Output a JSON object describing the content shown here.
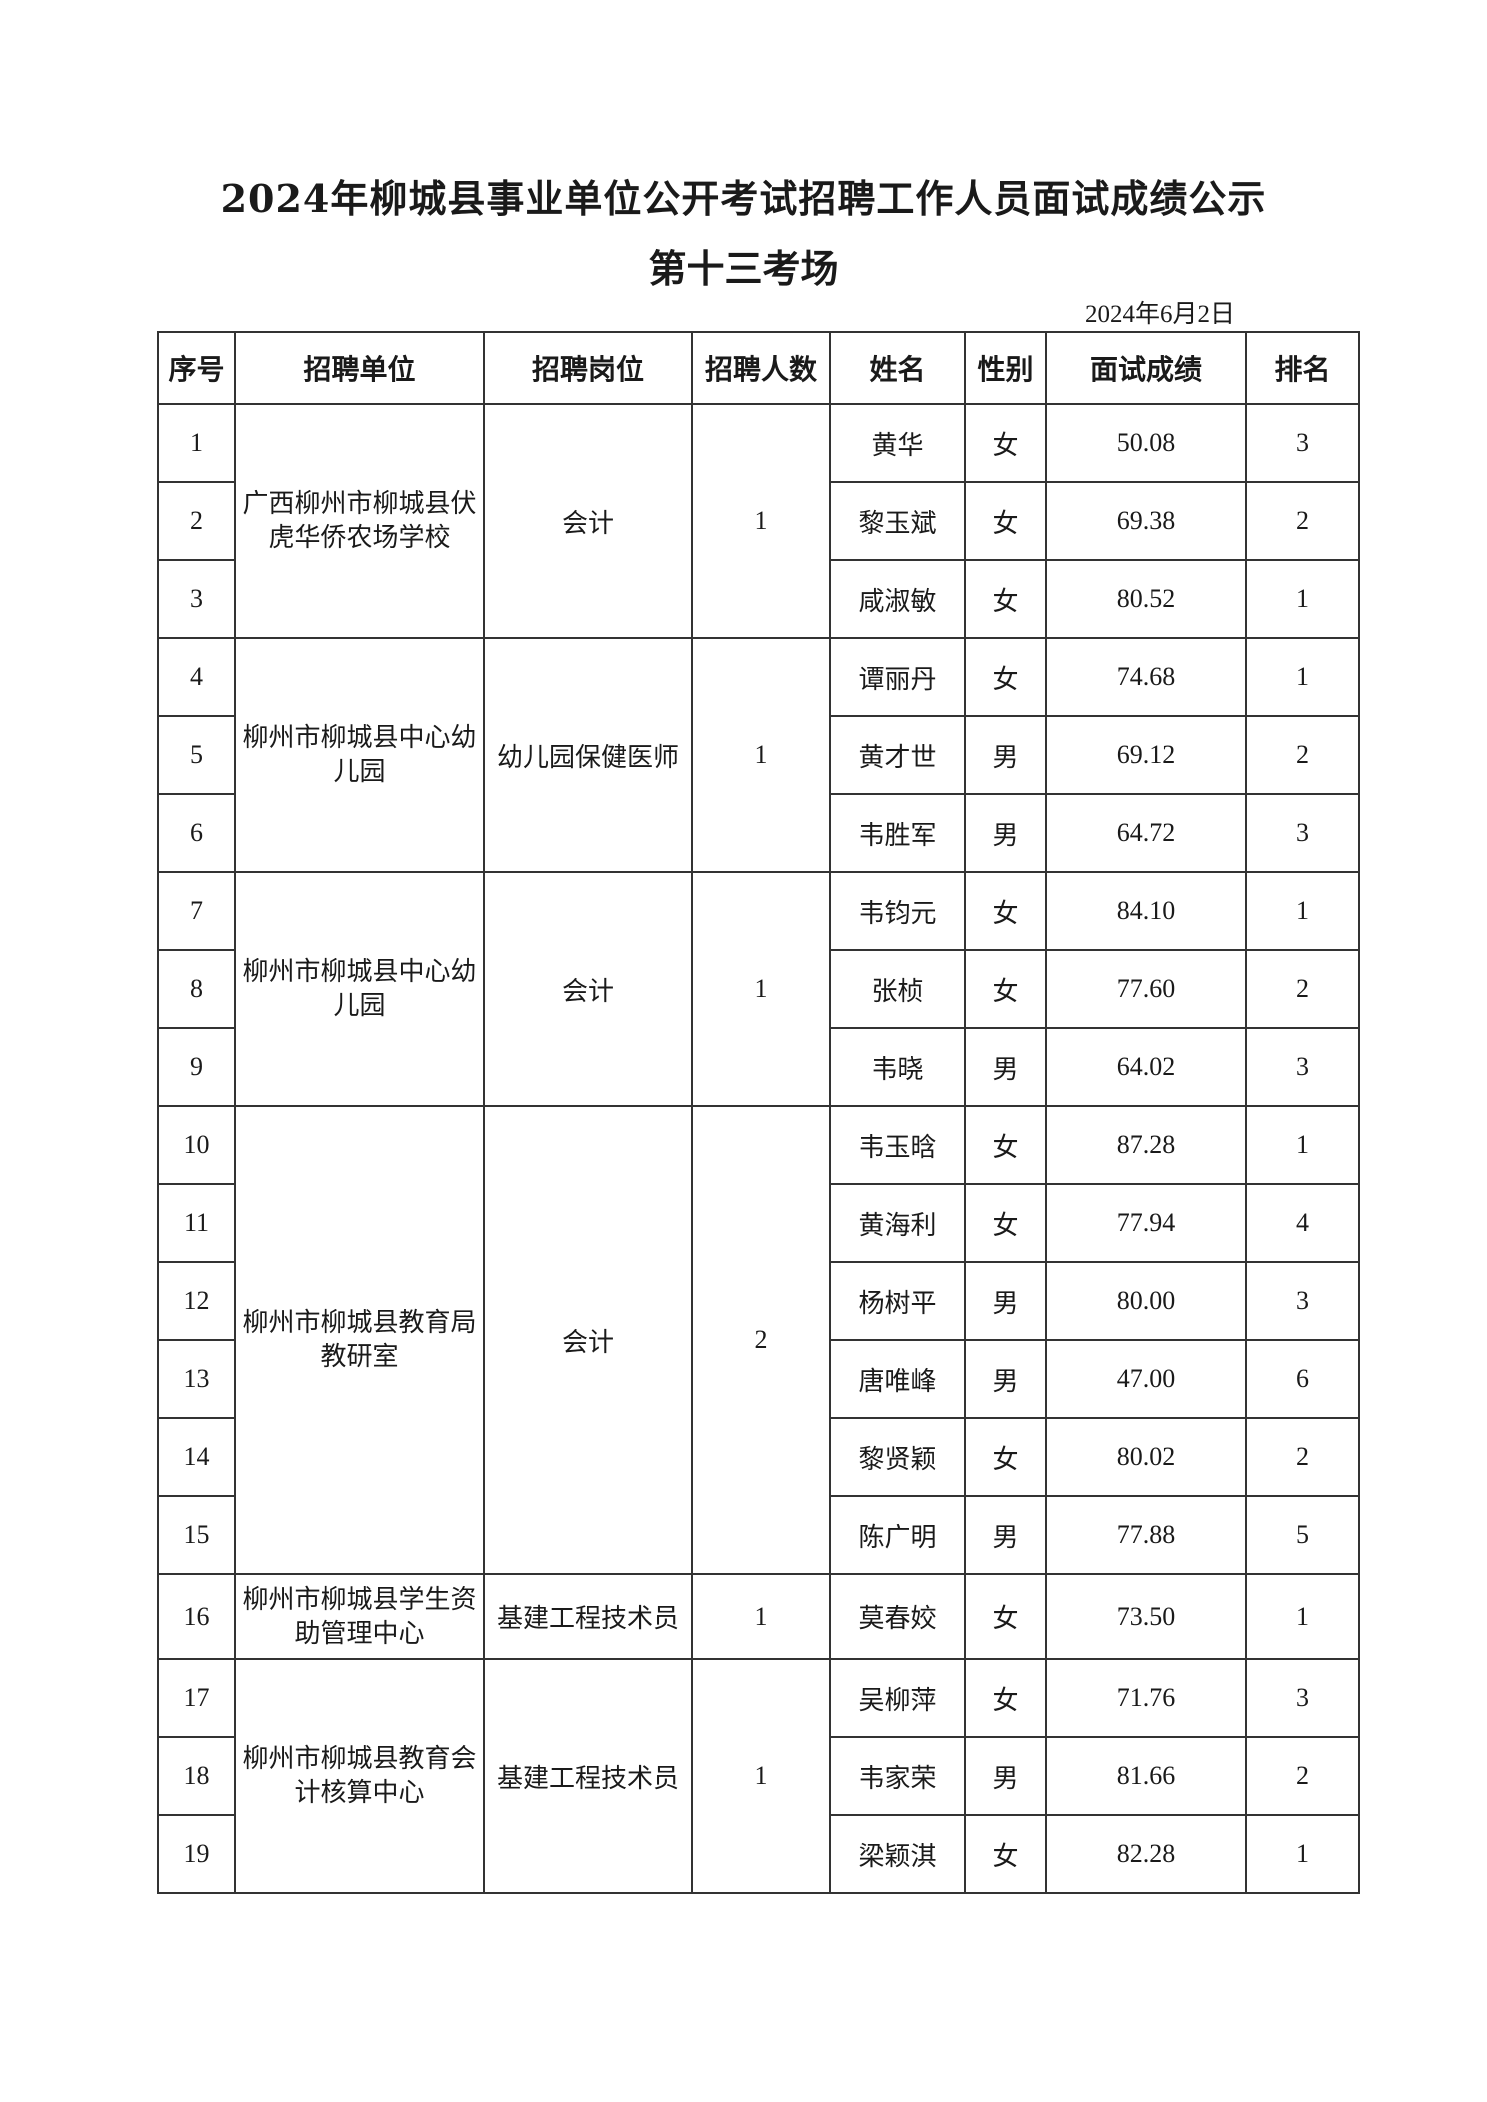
{
  "title": "2024年柳城县事业单位公开考试招聘工作人员面试成绩公示",
  "subtitle": "第十三考场",
  "date": "2024年6月2日",
  "table": {
    "headers": [
      "序号",
      "招聘单位",
      "招聘岗位",
      "招聘人数",
      "姓名",
      "性别",
      "面试成绩",
      "排名"
    ],
    "groups": [
      {
        "unit": "广西柳州市柳城县伏虎华侨农场学校",
        "post": "会计",
        "count": "1",
        "rows": [
          {
            "no": "1",
            "name": "黄华",
            "gender": "女",
            "score": "50.08",
            "rank": "3"
          },
          {
            "no": "2",
            "name": "黎玉斌",
            "gender": "女",
            "score": "69.38",
            "rank": "2"
          },
          {
            "no": "3",
            "name": "咸淑敏",
            "gender": "女",
            "score": "80.52",
            "rank": "1"
          }
        ]
      },
      {
        "unit": "柳州市柳城县中心幼儿园",
        "post": "幼儿园保健医师",
        "count": "1",
        "rows": [
          {
            "no": "4",
            "name": "谭丽丹",
            "gender": "女",
            "score": "74.68",
            "rank": "1"
          },
          {
            "no": "5",
            "name": "黄才世",
            "gender": "男",
            "score": "69.12",
            "rank": "2"
          },
          {
            "no": "6",
            "name": "韦胜军",
            "gender": "男",
            "score": "64.72",
            "rank": "3"
          }
        ]
      },
      {
        "unit": "柳州市柳城县中心幼儿园",
        "post": "会计",
        "count": "1",
        "rows": [
          {
            "no": "7",
            "name": "韦钧元",
            "gender": "女",
            "score": "84.10",
            "rank": "1"
          },
          {
            "no": "8",
            "name": "张桢",
            "gender": "女",
            "score": "77.60",
            "rank": "2"
          },
          {
            "no": "9",
            "name": "韦晓",
            "gender": "男",
            "score": "64.02",
            "rank": "3"
          }
        ]
      },
      {
        "unit": "柳州市柳城县教育局教研室",
        "post": "会计",
        "count": "2",
        "rows": [
          {
            "no": "10",
            "name": "韦玉晗",
            "gender": "女",
            "score": "87.28",
            "rank": "1"
          },
          {
            "no": "11",
            "name": "黄海利",
            "gender": "女",
            "score": "77.94",
            "rank": "4"
          },
          {
            "no": "12",
            "name": "杨树平",
            "gender": "男",
            "score": "80.00",
            "rank": "3"
          },
          {
            "no": "13",
            "name": "唐唯峰",
            "gender": "男",
            "score": "47.00",
            "rank": "6"
          },
          {
            "no": "14",
            "name": "黎贤颖",
            "gender": "女",
            "score": "80.02",
            "rank": "2"
          },
          {
            "no": "15",
            "name": "陈广明",
            "gender": "男",
            "score": "77.88",
            "rank": "5"
          }
        ]
      },
      {
        "unit": "柳州市柳城县学生资助管理中心",
        "post": "基建工程技术员",
        "count": "1",
        "tall": true,
        "rows": [
          {
            "no": "16",
            "name": "莫春姣",
            "gender": "女",
            "score": "73.50",
            "rank": "1"
          }
        ]
      },
      {
        "unit": "柳州市柳城县教育会计核算中心",
        "post": "基建工程技术员",
        "count": "1",
        "rows": [
          {
            "no": "17",
            "name": "吴柳萍",
            "gender": "女",
            "score": "71.76",
            "rank": "3"
          },
          {
            "no": "18",
            "name": "韦家荣",
            "gender": "男",
            "score": "81.66",
            "rank": "2"
          },
          {
            "no": "19",
            "name": "梁颖淇",
            "gender": "女",
            "score": "82.28",
            "rank": "1"
          }
        ]
      }
    ]
  }
}
